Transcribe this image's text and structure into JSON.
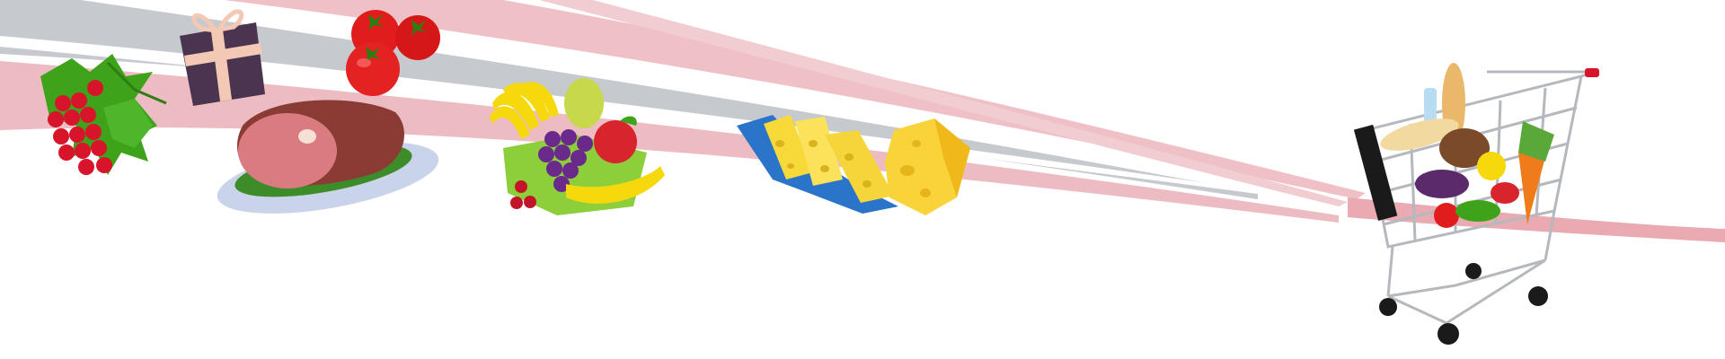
{
  "scene": {
    "description_items": [
      "red-currants",
      "gift-box",
      "ham-roast",
      "tomatoes",
      "fruit-platter",
      "cheese-slices",
      "shopping-cart"
    ],
    "colors": {
      "background": "#ffffff",
      "swoosh_pink": "#e8a7ae",
      "swoosh_gray": "#c4c7cc",
      "currant_red": "#d8142a",
      "leaf_green": "#3ea31a",
      "gift_purple": "#4b3450",
      "ribbon_peach": "#f3c8b5",
      "ham_pink": "#d97b80",
      "ham_brown": "#8a3b33",
      "plate_blue": "#c9d3ea",
      "tomato_red": "#e01c1c",
      "banana_yellow": "#f5d90c",
      "grape_purple": "#6a2a8c",
      "apple_red": "#d8242c",
      "cheese_yellow": "#f8d93a",
      "cheese_blue": "#2a75c9",
      "cart_gray": "#b5b8bc",
      "wheel_black": "#1a1a1a",
      "carrot_orange": "#f07b1a"
    }
  }
}
